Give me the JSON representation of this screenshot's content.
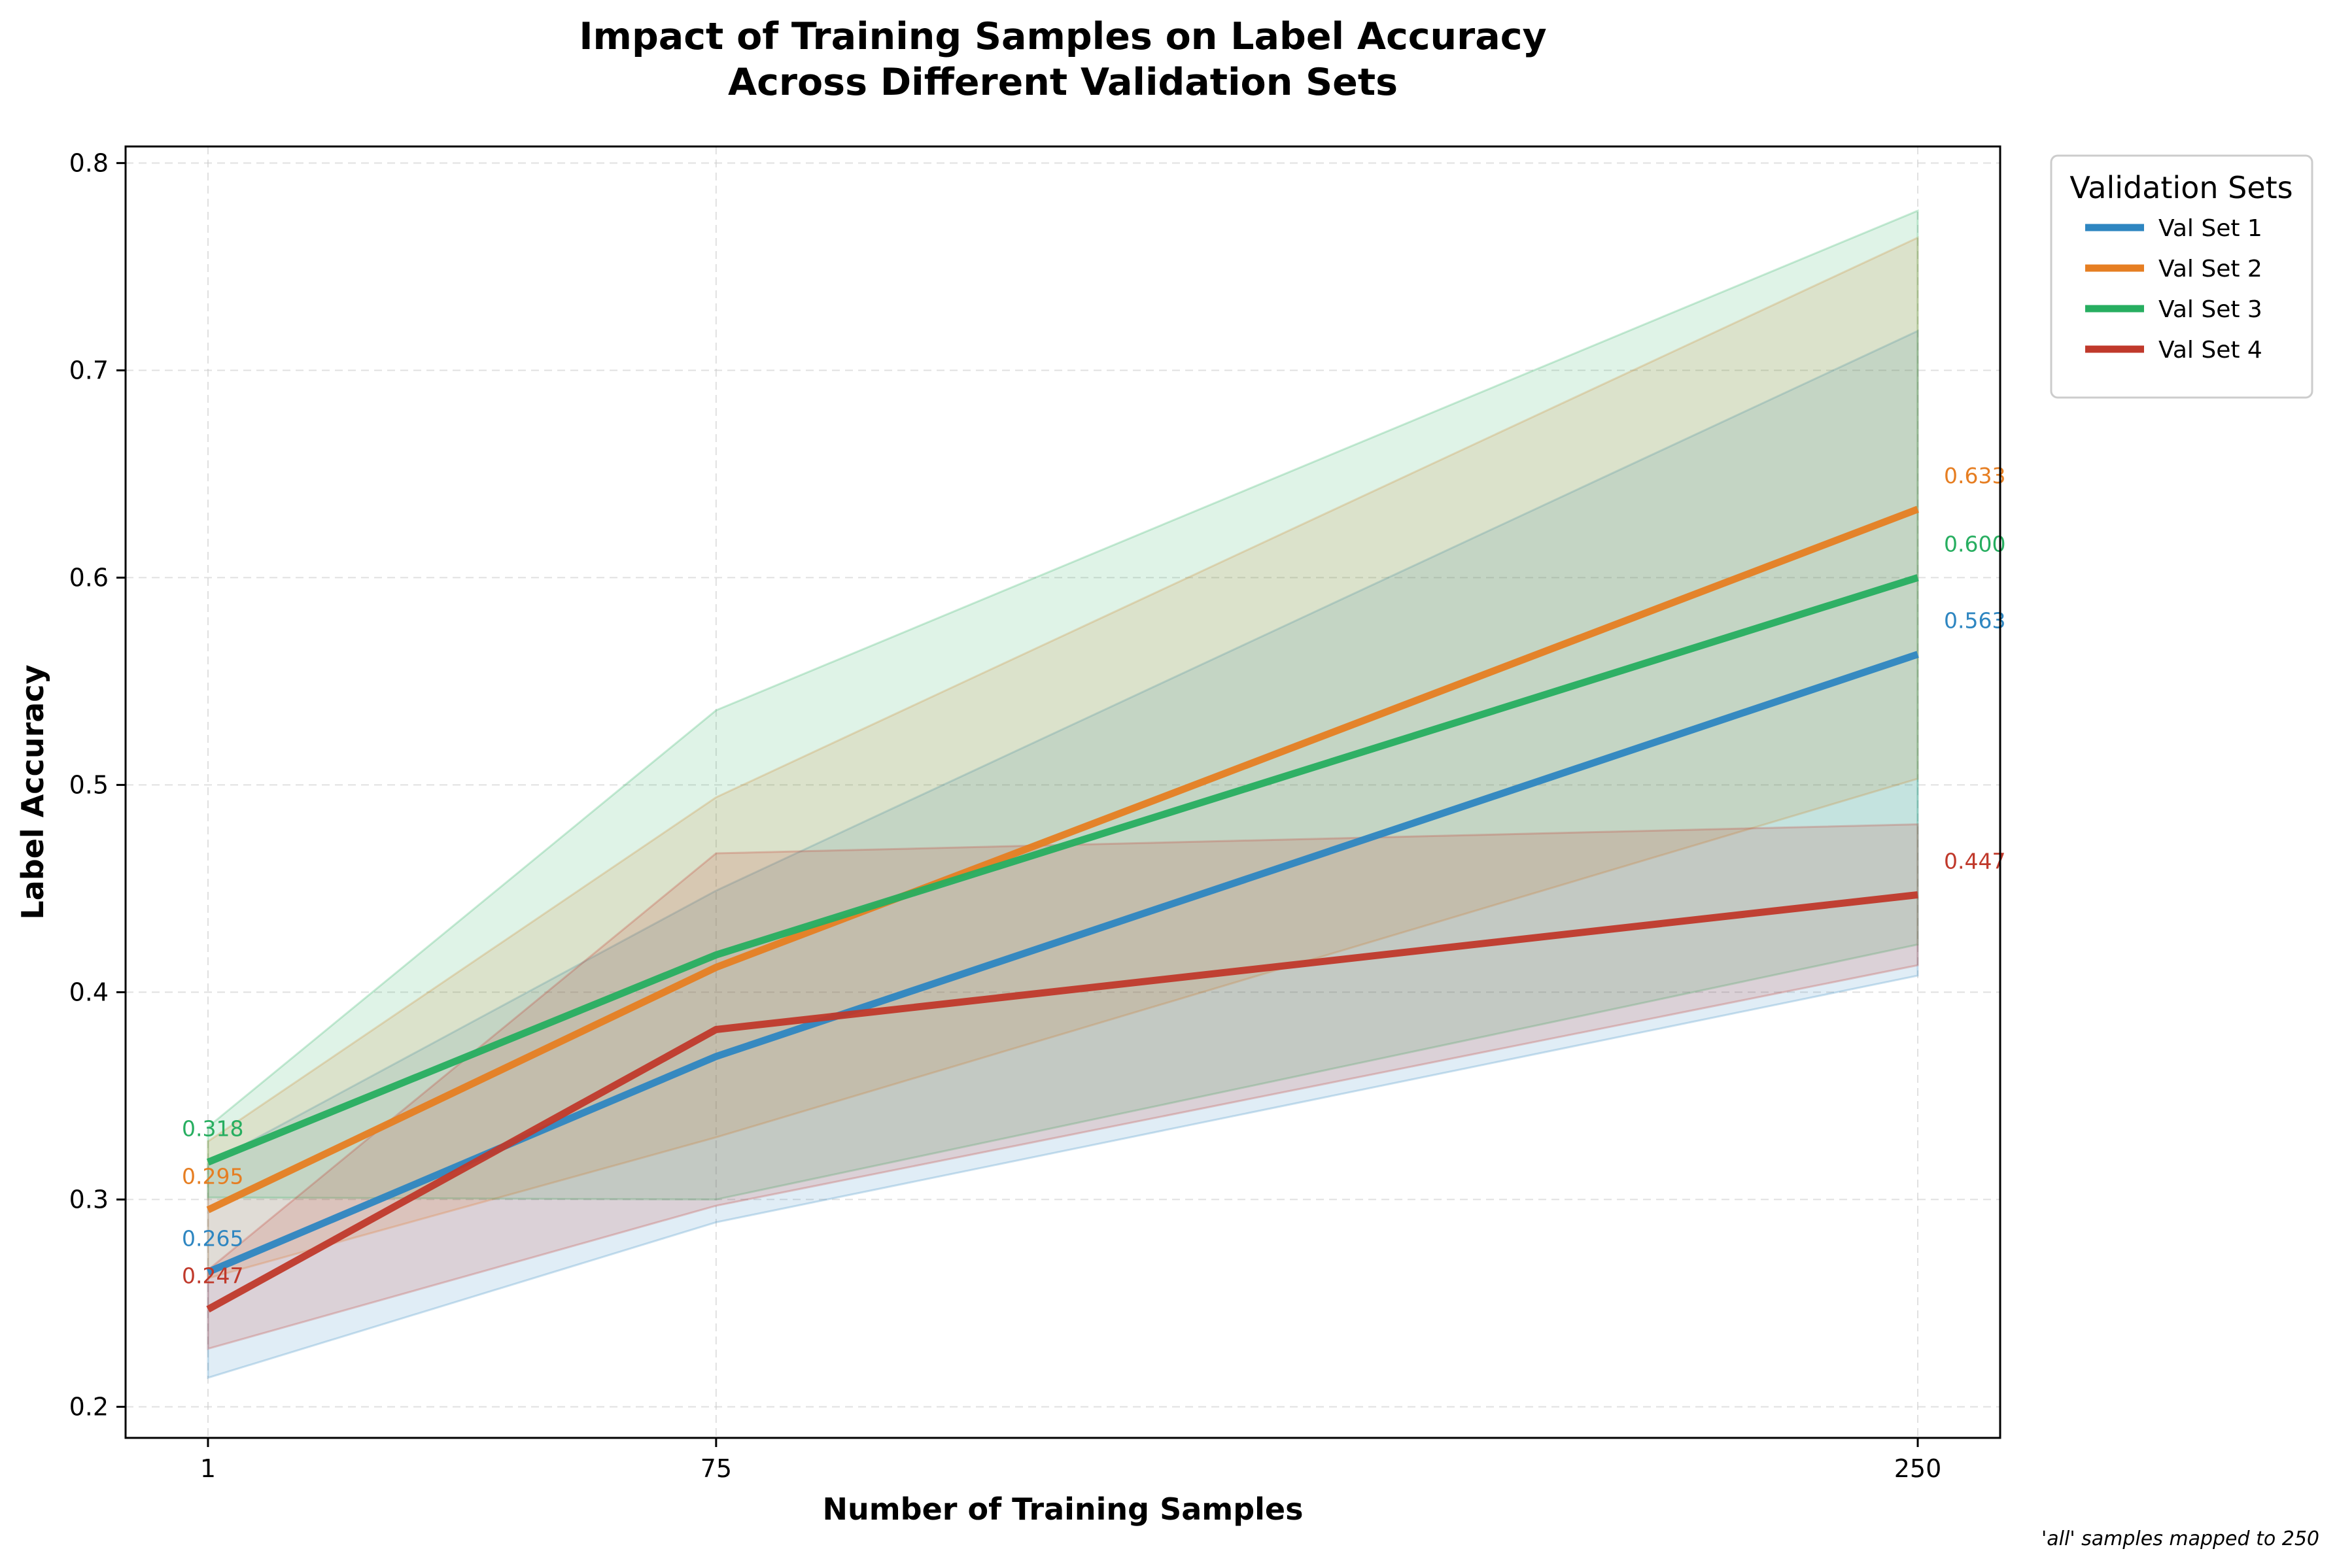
{
  "chart_data": {
    "type": "line",
    "title": "Impact of Training Samples on Label Accuracy\nAcross Different Validation Sets",
    "xlabel": "Number of Training Samples",
    "ylabel": "Label Accuracy",
    "x": [
      1,
      75,
      250
    ],
    "x_tick_labels": [
      "1",
      "75",
      "250"
    ],
    "xlim": [
      -11,
      262
    ],
    "ylim": [
      0.185,
      0.808
    ],
    "y_ticks": [
      0.2,
      0.3,
      0.4,
      0.5,
      0.6,
      0.7,
      0.8
    ],
    "y_tick_labels": [
      "0.2",
      "0.3",
      "0.4",
      "0.5",
      "0.6",
      "0.7",
      "0.8"
    ],
    "grid": true,
    "legend": {
      "title": "Validation Sets",
      "placement": "outside-top-right"
    },
    "series": [
      {
        "name": "Val Set 1",
        "color": "#2e86c1",
        "values": [
          0.265,
          0.369,
          0.563
        ],
        "lower": [
          0.214,
          0.289,
          0.408
        ],
        "upper": [
          0.317,
          0.449,
          0.719
        ],
        "end_labels": [
          "0.265",
          "0.563"
        ]
      },
      {
        "name": "Val Set 2",
        "color": "#e67e22",
        "values": [
          0.295,
          0.412,
          0.633
        ],
        "lower": [
          0.262,
          0.33,
          0.503
        ],
        "upper": [
          0.328,
          0.494,
          0.764
        ],
        "end_labels": [
          "0.295",
          "0.633"
        ]
      },
      {
        "name": "Val Set 3",
        "color": "#27ae60",
        "values": [
          0.318,
          0.418,
          0.6
        ],
        "lower": [
          0.301,
          0.3,
          0.423
        ],
        "upper": [
          0.335,
          0.536,
          0.777
        ],
        "end_labels": [
          "0.318",
          "0.600"
        ]
      },
      {
        "name": "Val Set 4",
        "color": "#c0392b",
        "values": [
          0.247,
          0.382,
          0.447
        ],
        "lower": [
          0.228,
          0.297,
          0.413
        ],
        "upper": [
          0.266,
          0.467,
          0.481
        ],
        "end_labels": [
          "0.247",
          "0.447"
        ]
      }
    ],
    "annotation": "'all' samples mapped to 250"
  }
}
